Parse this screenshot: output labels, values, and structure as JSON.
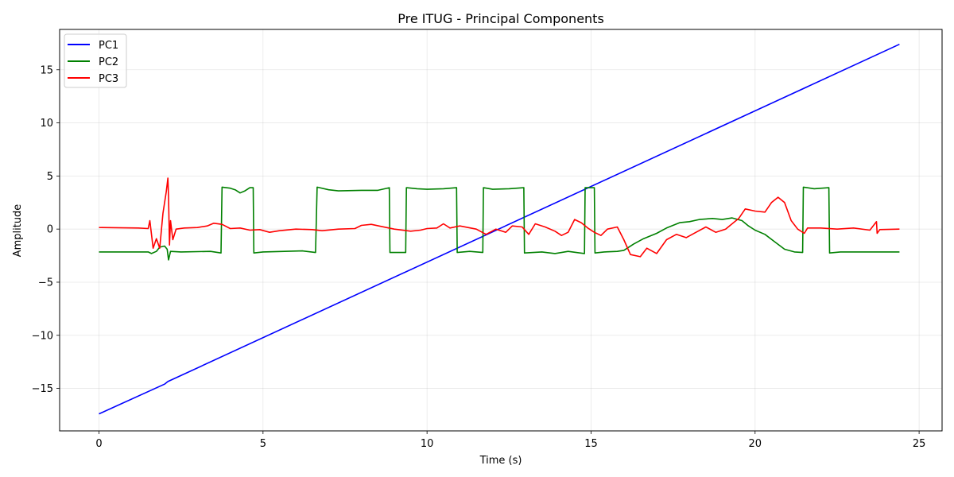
{
  "chart_data": {
    "type": "line",
    "title": "Pre ITUG - Principal Components",
    "xlabel": "Time (s)",
    "ylabel": "Amplitude",
    "xlim": [
      -1.2,
      25.7
    ],
    "ylim": [
      -19.0,
      18.8
    ],
    "xticks": [
      0,
      5,
      10,
      15,
      20,
      25
    ],
    "yticks": [
      -15,
      -10,
      -5,
      0,
      5,
      10,
      15
    ],
    "xtick_labels": [
      "0",
      "5",
      "10",
      "15",
      "20",
      "25"
    ],
    "ytick_labels": [
      "−15",
      "−10",
      "−5",
      "0",
      "5",
      "10",
      "15"
    ],
    "grid": true,
    "legend_position": "top-left",
    "series": [
      {
        "name": "PC1",
        "color": "#0000ff",
        "points": [
          [
            0,
            -17.4
          ],
          [
            2.0,
            -14.6
          ],
          [
            2.1,
            -14.35
          ],
          [
            24.4,
            17.4
          ]
        ]
      },
      {
        "name": "PC2",
        "color": "#008000",
        "points": [
          [
            0,
            -2.15
          ],
          [
            1.5,
            -2.15
          ],
          [
            1.6,
            -2.3
          ],
          [
            1.75,
            -2.1
          ],
          [
            1.85,
            -1.7
          ],
          [
            2.0,
            -1.6
          ],
          [
            2.08,
            -1.9
          ],
          [
            2.12,
            -2.9
          ],
          [
            2.18,
            -2.1
          ],
          [
            2.5,
            -2.15
          ],
          [
            3.4,
            -2.1
          ],
          [
            3.72,
            -2.25
          ],
          [
            3.75,
            3.95
          ],
          [
            4.0,
            3.85
          ],
          [
            4.15,
            3.7
          ],
          [
            4.3,
            3.4
          ],
          [
            4.45,
            3.6
          ],
          [
            4.6,
            3.9
          ],
          [
            4.7,
            3.9
          ],
          [
            4.72,
            -2.25
          ],
          [
            5.0,
            -2.15
          ],
          [
            6.2,
            -2.05
          ],
          [
            6.6,
            -2.2
          ],
          [
            6.65,
            3.95
          ],
          [
            7.0,
            3.7
          ],
          [
            7.3,
            3.6
          ],
          [
            8.0,
            3.65
          ],
          [
            8.5,
            3.65
          ],
          [
            8.85,
            3.9
          ],
          [
            8.87,
            -2.2
          ],
          [
            9.0,
            -2.2
          ],
          [
            9.35,
            -2.2
          ],
          [
            9.37,
            3.9
          ],
          [
            9.7,
            3.8
          ],
          [
            10.0,
            3.75
          ],
          [
            10.5,
            3.8
          ],
          [
            10.9,
            3.9
          ],
          [
            10.92,
            -2.2
          ],
          [
            11.3,
            -2.1
          ],
          [
            11.7,
            -2.2
          ],
          [
            11.72,
            3.9
          ],
          [
            12.0,
            3.75
          ],
          [
            12.5,
            3.8
          ],
          [
            12.95,
            3.9
          ],
          [
            12.97,
            -2.25
          ],
          [
            13.5,
            -2.15
          ],
          [
            13.9,
            -2.3
          ],
          [
            14.3,
            -2.1
          ],
          [
            14.8,
            -2.3
          ],
          [
            14.82,
            3.9
          ],
          [
            15.1,
            3.9
          ],
          [
            15.12,
            -2.25
          ],
          [
            15.4,
            -2.15
          ],
          [
            15.8,
            -2.1
          ],
          [
            16.0,
            -2.0
          ],
          [
            16.3,
            -1.4
          ],
          [
            16.6,
            -0.9
          ],
          [
            17.0,
            -0.4
          ],
          [
            17.3,
            0.1
          ],
          [
            17.7,
            0.6
          ],
          [
            18.0,
            0.7
          ],
          [
            18.3,
            0.9
          ],
          [
            18.7,
            1.0
          ],
          [
            19.0,
            0.9
          ],
          [
            19.3,
            1.05
          ],
          [
            19.6,
            0.8
          ],
          [
            19.8,
            0.3
          ],
          [
            20.0,
            -0.1
          ],
          [
            20.3,
            -0.5
          ],
          [
            20.6,
            -1.2
          ],
          [
            20.9,
            -1.9
          ],
          [
            21.2,
            -2.15
          ],
          [
            21.45,
            -2.2
          ],
          [
            21.47,
            3.95
          ],
          [
            21.8,
            3.8
          ],
          [
            22.25,
            3.9
          ],
          [
            22.27,
            -2.25
          ],
          [
            22.6,
            -2.15
          ],
          [
            23.5,
            -2.15
          ],
          [
            24.4,
            -2.15
          ]
        ]
      },
      {
        "name": "PC3",
        "color": "#ff0000",
        "points": [
          [
            0,
            0.15
          ],
          [
            1.2,
            0.1
          ],
          [
            1.5,
            0.05
          ],
          [
            1.55,
            0.8
          ],
          [
            1.65,
            -1.8
          ],
          [
            1.75,
            -0.9
          ],
          [
            1.85,
            -1.8
          ],
          [
            1.95,
            1.5
          ],
          [
            2.05,
            3.5
          ],
          [
            2.1,
            4.8
          ],
          [
            2.12,
            3.0
          ],
          [
            2.15,
            -1.5
          ],
          [
            2.18,
            0.8
          ],
          [
            2.25,
            -1.0
          ],
          [
            2.35,
            0.0
          ],
          [
            2.6,
            0.1
          ],
          [
            3.0,
            0.15
          ],
          [
            3.3,
            0.3
          ],
          [
            3.5,
            0.55
          ],
          [
            3.75,
            0.45
          ],
          [
            4.0,
            0.05
          ],
          [
            4.3,
            0.1
          ],
          [
            4.6,
            -0.1
          ],
          [
            4.9,
            -0.05
          ],
          [
            5.2,
            -0.3
          ],
          [
            5.5,
            -0.15
          ],
          [
            6.0,
            0.0
          ],
          [
            6.5,
            -0.05
          ],
          [
            6.8,
            -0.15
          ],
          [
            7.3,
            0.0
          ],
          [
            7.8,
            0.05
          ],
          [
            8.0,
            0.35
          ],
          [
            8.3,
            0.45
          ],
          [
            8.6,
            0.25
          ],
          [
            9.0,
            0.0
          ],
          [
            9.5,
            -0.2
          ],
          [
            9.8,
            -0.1
          ],
          [
            10.0,
            0.05
          ],
          [
            10.3,
            0.1
          ],
          [
            10.5,
            0.5
          ],
          [
            10.7,
            0.1
          ],
          [
            11.0,
            0.3
          ],
          [
            11.5,
            0.0
          ],
          [
            11.8,
            -0.5
          ],
          [
            12.1,
            0.0
          ],
          [
            12.4,
            -0.3
          ],
          [
            12.6,
            0.3
          ],
          [
            12.9,
            0.2
          ],
          [
            13.1,
            -0.5
          ],
          [
            13.3,
            0.5
          ],
          [
            13.6,
            0.2
          ],
          [
            13.9,
            -0.2
          ],
          [
            14.1,
            -0.6
          ],
          [
            14.3,
            -0.3
          ],
          [
            14.5,
            0.9
          ],
          [
            14.7,
            0.6
          ],
          [
            14.9,
            0.1
          ],
          [
            15.1,
            -0.3
          ],
          [
            15.3,
            -0.6
          ],
          [
            15.5,
            0.0
          ],
          [
            15.8,
            0.2
          ],
          [
            16.0,
            -1.0
          ],
          [
            16.2,
            -2.4
          ],
          [
            16.5,
            -2.6
          ],
          [
            16.7,
            -1.8
          ],
          [
            17.0,
            -2.3
          ],
          [
            17.3,
            -1.0
          ],
          [
            17.6,
            -0.5
          ],
          [
            17.9,
            -0.8
          ],
          [
            18.2,
            -0.3
          ],
          [
            18.5,
            0.2
          ],
          [
            18.8,
            -0.3
          ],
          [
            19.1,
            0.0
          ],
          [
            19.3,
            0.5
          ],
          [
            19.5,
            1.0
          ],
          [
            19.7,
            1.9
          ],
          [
            20.0,
            1.7
          ],
          [
            20.3,
            1.6
          ],
          [
            20.5,
            2.5
          ],
          [
            20.7,
            3.0
          ],
          [
            20.9,
            2.5
          ],
          [
            21.1,
            0.8
          ],
          [
            21.3,
            0.0
          ],
          [
            21.5,
            -0.4
          ],
          [
            21.6,
            0.1
          ],
          [
            22.0,
            0.1
          ],
          [
            22.5,
            0.0
          ],
          [
            23.0,
            0.1
          ],
          [
            23.5,
            -0.1
          ],
          [
            23.7,
            0.7
          ],
          [
            23.72,
            -0.4
          ],
          [
            23.8,
            -0.05
          ],
          [
            24.4,
            0.0
          ]
        ]
      }
    ]
  }
}
